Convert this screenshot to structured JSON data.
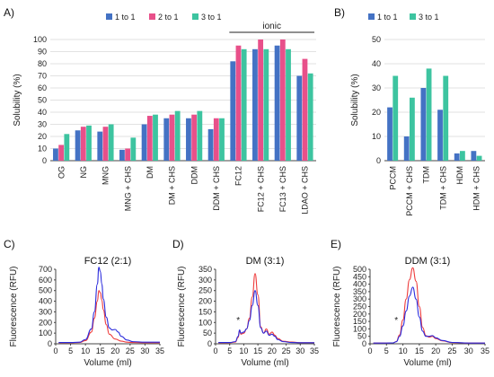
{
  "colors": {
    "s1": "#4472c4",
    "s2": "#e8508a",
    "s3": "#3dc4a0",
    "red": "#ee3b3b",
    "blue": "#2b2bdc"
  },
  "chart_data": [
    {
      "id": "A",
      "type": "bar",
      "panel_label": "A)",
      "title": "",
      "xlabel": "",
      "ylabel": "Solubility (%)",
      "ylim": [
        0,
        100
      ],
      "yticks": [
        0,
        10,
        20,
        30,
        40,
        50,
        60,
        70,
        80,
        90,
        100
      ],
      "grid": true,
      "legend_position": "top",
      "bracket_label": "ionic",
      "bracket_categories": [
        "FC12",
        "LDAO + CHS"
      ],
      "categories": [
        "OG",
        "NG",
        "MNG",
        "MNG + CHS",
        "DM",
        "DM + CHS",
        "DDM",
        "DDM + CHS",
        "FC12",
        "FC12 + CHS",
        "FC13 + CHS",
        "LDAO + CHS"
      ],
      "series": [
        {
          "name": "1 to 1",
          "color": "s1",
          "values": [
            10,
            25,
            24,
            9,
            30,
            35,
            35,
            26,
            82,
            92,
            95,
            70
          ]
        },
        {
          "name": "2 to 1",
          "color": "s2",
          "values": [
            13,
            28,
            28,
            10,
            37,
            38,
            38,
            35,
            95,
            100,
            100,
            84
          ]
        },
        {
          "name": "3 to 1",
          "color": "s3",
          "values": [
            22,
            29,
            30,
            19,
            38,
            41,
            41,
            35,
            92,
            92,
            92,
            72
          ]
        }
      ]
    },
    {
      "id": "B",
      "type": "bar",
      "panel_label": "B)",
      "title": "",
      "xlabel": "",
      "ylabel": "Solubility (%)",
      "ylim": [
        0,
        50
      ],
      "yticks": [
        0,
        10,
        20,
        30,
        40,
        50
      ],
      "grid": true,
      "legend_position": "top",
      "categories": [
        "PCCM",
        "PCCM + CHS",
        "TDM",
        "TDM + CHS",
        "HDM",
        "HDM + CHS"
      ],
      "series": [
        {
          "name": "1 to 1",
          "color": "s1",
          "values": [
            22,
            10,
            30,
            21,
            3,
            4
          ]
        },
        {
          "name": "3 to 1",
          "color": "s3",
          "values": [
            35,
            26,
            38,
            35,
            4,
            2
          ]
        }
      ]
    },
    {
      "id": "C",
      "type": "line",
      "panel_label": "C)",
      "title": "FC12 (2:1)",
      "xlabel": "Volume (ml)",
      "ylabel": "Fluorescence (RFU)",
      "xlim": [
        0,
        35
      ],
      "ylim": [
        0,
        700
      ],
      "xticks": [
        0,
        5,
        10,
        15,
        20,
        25,
        30,
        35
      ],
      "yticks": [
        0,
        100,
        200,
        300,
        400,
        500,
        600,
        700
      ],
      "series": [
        {
          "color": "red",
          "x": [
            1,
            5,
            8,
            10,
            12,
            13,
            14,
            14.5,
            15,
            15.5,
            16,
            17,
            18,
            20,
            22,
            24,
            26,
            30,
            35
          ],
          "y": [
            10,
            10,
            12,
            30,
            110,
            240,
            400,
            500,
            480,
            410,
            320,
            180,
            90,
            45,
            25,
            15,
            12,
            10,
            10
          ]
        },
        {
          "color": "blue",
          "x": [
            1,
            5,
            8,
            10,
            12,
            13,
            14,
            14.5,
            15,
            15.5,
            16,
            17,
            18,
            19,
            20,
            21,
            22,
            24,
            26,
            30,
            35
          ],
          "y": [
            12,
            12,
            15,
            40,
            140,
            300,
            560,
            720,
            680,
            560,
            420,
            250,
            150,
            130,
            135,
            110,
            70,
            35,
            20,
            15,
            15
          ]
        }
      ]
    },
    {
      "id": "D",
      "type": "line",
      "panel_label": "D)",
      "title": "DM (3:1)",
      "xlabel": "Volume (ml)",
      "ylabel": "Fluorescence (RFU)",
      "xlim": [
        0,
        35
      ],
      "ylim": [
        0,
        350
      ],
      "xticks": [
        0,
        5,
        10,
        15,
        20,
        25,
        30,
        35
      ],
      "yticks": [
        0,
        50,
        100,
        150,
        200,
        250,
        300,
        350
      ],
      "annotation": "*",
      "series": [
        {
          "color": "red",
          "x": [
            1,
            5,
            7,
            8,
            8.5,
            9,
            10,
            11,
            12,
            13,
            14,
            15,
            16,
            17,
            18,
            19,
            20,
            21,
            22,
            24,
            27,
            30,
            35
          ],
          "y": [
            5,
            5,
            8,
            30,
            60,
            45,
            50,
            70,
            120,
            220,
            330,
            230,
            80,
            50,
            70,
            45,
            55,
            40,
            25,
            12,
            8,
            5,
            5
          ]
        },
        {
          "color": "blue",
          "x": [
            1,
            5,
            7,
            8,
            8.5,
            9,
            10,
            11,
            12,
            13,
            14,
            15,
            16,
            17,
            18,
            19,
            20,
            21,
            22,
            24,
            27,
            30,
            35
          ],
          "y": [
            6,
            6,
            10,
            35,
            65,
            50,
            55,
            70,
            110,
            180,
            250,
            180,
            75,
            50,
            60,
            40,
            45,
            35,
            20,
            10,
            6,
            5,
            5
          ]
        }
      ]
    },
    {
      "id": "E",
      "type": "line",
      "panel_label": "E)",
      "title": "DDM (3:1)",
      "xlabel": "Volume (ml)",
      "ylabel": "Fluorescence (RFU)",
      "xlim": [
        0,
        35
      ],
      "ylim": [
        0,
        500
      ],
      "xticks": [
        0,
        5,
        10,
        15,
        20,
        25,
        30,
        35
      ],
      "yticks": [
        0,
        50,
        100,
        150,
        200,
        250,
        300,
        350,
        400,
        450,
        500
      ],
      "annotation": "*",
      "series": [
        {
          "color": "red",
          "x": [
            1,
            5,
            7,
            8,
            9,
            10,
            11,
            12,
            13,
            14,
            15,
            16,
            17,
            18,
            19,
            20,
            22,
            25,
            30,
            35
          ],
          "y": [
            5,
            5,
            6,
            15,
            60,
            160,
            300,
            430,
            510,
            420,
            250,
            110,
            55,
            45,
            50,
            35,
            20,
            8,
            5,
            5
          ]
        },
        {
          "color": "blue",
          "x": [
            1,
            5,
            7,
            8,
            9,
            10,
            11,
            12,
            13,
            14,
            15,
            16,
            17,
            18,
            19,
            20,
            22,
            25,
            30,
            35
          ],
          "y": [
            5,
            5,
            6,
            14,
            50,
            120,
            220,
            320,
            380,
            300,
            180,
            85,
            50,
            50,
            55,
            40,
            22,
            9,
            5,
            5
          ]
        }
      ]
    }
  ]
}
